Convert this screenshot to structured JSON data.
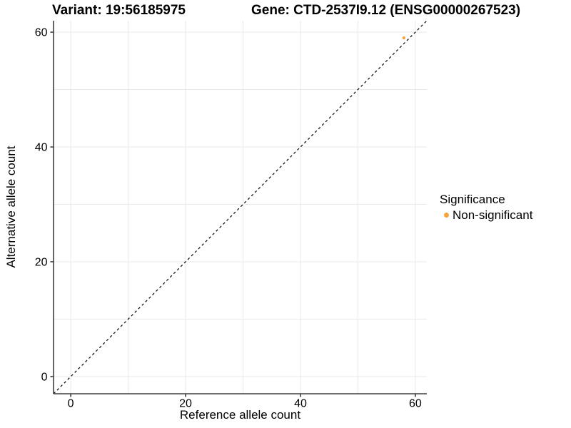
{
  "header": {
    "variant_title": "Variant: 19:56185975",
    "gene_title": "Gene: CTD-2537I9.12 (ENSG00000267523)"
  },
  "chart_data": {
    "type": "scatter",
    "xlabel": "Reference allele count",
    "ylabel": "Alternative allele count",
    "xlim": [
      -3,
      62
    ],
    "ylim": [
      -3,
      62
    ],
    "xticks": [
      0,
      20,
      40,
      60
    ],
    "yticks": [
      0,
      20,
      40,
      60
    ],
    "grid": true,
    "grid_step": 10,
    "grid_range": [
      0,
      60
    ],
    "identity_line": {
      "shown": true,
      "style": "dashed",
      "color": "#000000",
      "equation": "y = x"
    },
    "series": [
      {
        "name": "Non-significant",
        "color": "#F8A13E",
        "points": [
          {
            "x": 58,
            "y": 59
          }
        ]
      }
    ],
    "legend": {
      "title": "Significance",
      "position": "right"
    }
  }
}
